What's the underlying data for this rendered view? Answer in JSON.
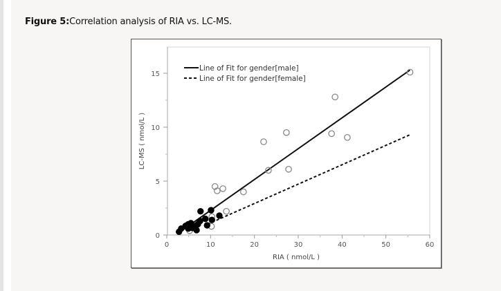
{
  "caption": {
    "label": "Figure 5:",
    "text": "Correlation analysis of RIA vs. LC-MS."
  },
  "chart_data": {
    "type": "scatter",
    "title": "",
    "xlabel": "RIA ( nmol/L )",
    "ylabel": "LC-MS ( nmol/L )",
    "xlim": [
      0,
      60
    ],
    "ylim": [
      0,
      17
    ],
    "x_ticks": [
      0,
      10,
      20,
      30,
      40,
      50,
      60
    ],
    "y_ticks": [
      0,
      5,
      10,
      15
    ],
    "grid": false,
    "legend_position": "top-left",
    "legend": [
      {
        "label": "Line of Fit for gender[male]",
        "style": "solid"
      },
      {
        "label": "Line of Fit for gender[female]",
        "style": "dashed"
      }
    ],
    "series": [
      {
        "name": "male",
        "marker": "open-circle",
        "color": "#888888",
        "points": [
          [
            5.2,
            0.4
          ],
          [
            10.2,
            0.8
          ],
          [
            10.3,
            1.7
          ],
          [
            13.6,
            2.2
          ],
          [
            11.0,
            4.5
          ],
          [
            11.5,
            4.1
          ],
          [
            12.8,
            4.3
          ],
          [
            17.5,
            4.0
          ],
          [
            22.1,
            8.65
          ],
          [
            23.2,
            6.0
          ],
          [
            27.3,
            9.5
          ],
          [
            27.8,
            6.1
          ],
          [
            37.6,
            9.4
          ],
          [
            38.4,
            12.8
          ],
          [
            41.2,
            9.05
          ],
          [
            55.5,
            15.1
          ]
        ]
      },
      {
        "name": "female",
        "marker": "filled-circle",
        "color": "#000000",
        "points": [
          [
            2.8,
            0.3
          ],
          [
            3.3,
            0.6
          ],
          [
            4.3,
            0.85
          ],
          [
            4.9,
            1.0
          ],
          [
            5.5,
            1.1
          ],
          [
            4.9,
            0.6
          ],
          [
            5.8,
            0.65
          ],
          [
            6.6,
            0.85
          ],
          [
            7.1,
            1.0
          ],
          [
            7.6,
            1.3
          ],
          [
            7.7,
            2.2
          ],
          [
            10.1,
            2.3
          ],
          [
            8.8,
            1.5
          ],
          [
            10.3,
            1.4
          ],
          [
            12.0,
            1.8
          ],
          [
            9.2,
            0.9
          ],
          [
            6.8,
            0.45
          ]
        ]
      }
    ],
    "fit_lines": [
      {
        "name": "Line of Fit for gender[male]",
        "style": "solid",
        "from": [
          2.7,
          0.2
        ],
        "to": [
          55.5,
          15.3
        ]
      },
      {
        "name": "Line of Fit for gender[female]",
        "style": "dashed",
        "from": [
          9.3,
          1.0
        ],
        "to": [
          55.5,
          9.3
        ]
      }
    ]
  }
}
